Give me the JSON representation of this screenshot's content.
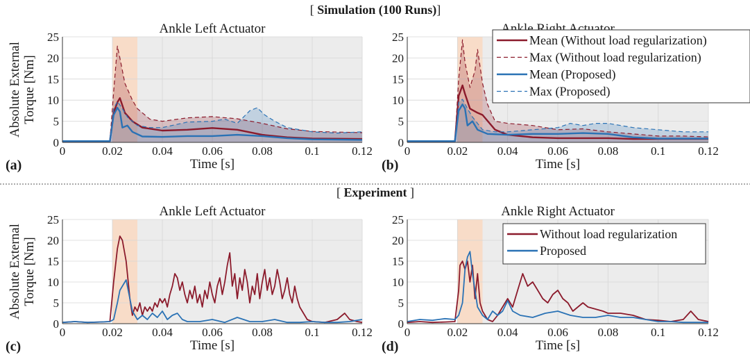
{
  "sections": {
    "simulation": {
      "prefix": "[ ",
      "bold": "Simulation (100 Runs)",
      "suffix": "]"
    },
    "experiment": {
      "prefix": "[ ",
      "bold": "Experiment",
      "suffix": " ]"
    }
  },
  "colors": {
    "without": "#8b1a2b",
    "proposed": "#2a72b5",
    "impact_region": "#f8dcc8",
    "post_region": "#ececec"
  },
  "chart_data": [
    {
      "type": "line",
      "panel": "(a)",
      "title": "Ankle Left Actuator",
      "xlabel": "Time [s]",
      "ylabel": "Absolute External Torque [Nm]",
      "xlim": [
        0,
        0.12
      ],
      "ylim": [
        0,
        25
      ],
      "xticks": [
        "0",
        "0.02",
        "0.04",
        "0.06",
        "0.08",
        "0.1",
        "0.12"
      ],
      "yticks": [
        "0",
        "5",
        "10",
        "15",
        "20",
        "25"
      ],
      "grid": true,
      "legend": null,
      "shaded_regions": [
        [
          0.02,
          0.03
        ],
        [
          0.03,
          0.12
        ]
      ],
      "series": [
        {
          "name": "Mean (Without load regularization)",
          "style": "mean",
          "color": "#8b1a2b",
          "x": [
            0,
            0.019,
            0.0205,
            0.022,
            0.023,
            0.025,
            0.028,
            0.032,
            0.04,
            0.05,
            0.06,
            0.07,
            0.08,
            0.09,
            0.1,
            0.12
          ],
          "y": [
            0.3,
            0.3,
            7,
            9.5,
            10.5,
            7,
            5,
            3.5,
            2.8,
            3,
            3.4,
            3,
            1.8,
            1.2,
            0.9,
            0.8
          ]
        },
        {
          "name": "Max (Without load regularization)",
          "style": "max",
          "color": "#8b1a2b",
          "x": [
            0,
            0.019,
            0.0205,
            0.022,
            0.023,
            0.025,
            0.028,
            0.03,
            0.032,
            0.035,
            0.04,
            0.05,
            0.06,
            0.07,
            0.08,
            0.09,
            0.1,
            0.12
          ],
          "y": [
            0.3,
            0.3,
            12,
            22.8,
            20,
            14,
            10,
            8,
            7,
            5.5,
            5,
            5.8,
            6.1,
            5.6,
            4.5,
            3.2,
            2.6,
            2.3
          ]
        },
        {
          "name": "Mean (Proposed)",
          "style": "mean",
          "color": "#2a72b5",
          "x": [
            0,
            0.019,
            0.0205,
            0.022,
            0.023,
            0.024,
            0.026,
            0.028,
            0.032,
            0.04,
            0.05,
            0.06,
            0.07,
            0.08,
            0.09,
            0.1,
            0.12
          ],
          "y": [
            0.3,
            0.3,
            6.5,
            8.2,
            7.3,
            3.5,
            4,
            2.5,
            1.4,
            1.3,
            1.5,
            1.5,
            1.8,
            1.5,
            1,
            0.7,
            0.6
          ]
        },
        {
          "name": "Max (Proposed)",
          "style": "max",
          "color": "#2a72b5",
          "x": [
            0,
            0.019,
            0.0205,
            0.022,
            0.024,
            0.026,
            0.03,
            0.035,
            0.04,
            0.05,
            0.06,
            0.065,
            0.07,
            0.075,
            0.078,
            0.081,
            0.085,
            0.09,
            0.1,
            0.11,
            0.12
          ],
          "y": [
            0.3,
            0.3,
            8,
            9.7,
            8,
            6,
            4,
            3.5,
            3.5,
            4.8,
            5,
            5.5,
            4.5,
            7.5,
            8.2,
            6.5,
            5,
            3.5,
            2.5,
            2.2,
            2.5
          ]
        }
      ]
    },
    {
      "type": "line",
      "panel": "(b)",
      "title": "Ankle Right Actuator",
      "xlabel": "Time [s]",
      "ylabel": "",
      "xlim": [
        0,
        0.12
      ],
      "ylim": [
        0,
        25
      ],
      "xticks": [
        "0",
        "0.02",
        "0.04",
        "0.06",
        "0.08",
        "0.1",
        "0.12"
      ],
      "yticks": [
        "0",
        "5",
        "10",
        "15",
        "20",
        "25"
      ],
      "grid": true,
      "legend": "top-right",
      "shaded_regions": [
        [
          0.02,
          0.03
        ],
        [
          0.03,
          0.12
        ]
      ],
      "series": [
        {
          "name": "Mean (Without load regularization)",
          "style": "mean",
          "color": "#8b1a2b",
          "x": [
            0,
            0.019,
            0.0205,
            0.022,
            0.023,
            0.025,
            0.028,
            0.03,
            0.035,
            0.04,
            0.05,
            0.06,
            0.07,
            0.08,
            0.09,
            0.1,
            0.12
          ],
          "y": [
            0.3,
            0.3,
            11,
            13.5,
            11.5,
            8,
            7,
            6.5,
            3,
            1.8,
            1.2,
            1,
            1,
            1,
            0.8,
            0.8,
            0.8
          ]
        },
        {
          "name": "Max (Without load regularization)",
          "style": "max",
          "color": "#8b1a2b",
          "x": [
            0,
            0.019,
            0.0205,
            0.022,
            0.023,
            0.025,
            0.027,
            0.028,
            0.03,
            0.032,
            0.035,
            0.04,
            0.05,
            0.06,
            0.07,
            0.08,
            0.09,
            0.1,
            0.11,
            0.12
          ],
          "y": [
            0.3,
            0.3,
            15,
            24.3,
            19,
            13,
            17,
            22,
            14,
            9,
            5,
            4.5,
            4,
            3,
            3.2,
            2.5,
            2,
            1.5,
            1.5,
            1.3
          ]
        },
        {
          "name": "Mean (Proposed)",
          "style": "mean",
          "color": "#2a72b5",
          "x": [
            0,
            0.019,
            0.0205,
            0.022,
            0.023,
            0.024,
            0.026,
            0.028,
            0.032,
            0.04,
            0.05,
            0.06,
            0.07,
            0.08,
            0.09,
            0.1,
            0.12
          ],
          "y": [
            0.3,
            0.3,
            7.5,
            9,
            8,
            4,
            5,
            3,
            2,
            1.8,
            2,
            2,
            2.2,
            2,
            1.2,
            0.9,
            0.9
          ]
        },
        {
          "name": "Max (Proposed)",
          "style": "max",
          "color": "#2a72b5",
          "x": [
            0,
            0.019,
            0.0205,
            0.022,
            0.024,
            0.026,
            0.03,
            0.035,
            0.04,
            0.05,
            0.06,
            0.065,
            0.07,
            0.075,
            0.08,
            0.09,
            0.1,
            0.11,
            0.12
          ],
          "y": [
            0.3,
            0.3,
            9.5,
            10.2,
            8,
            6,
            3,
            2.5,
            2.5,
            3,
            3.5,
            4.5,
            4,
            4.5,
            4.5,
            3.5,
            3,
            2.5,
            2.5
          ]
        }
      ]
    },
    {
      "type": "line",
      "panel": "(c)",
      "title": "Ankle Left Actuator",
      "xlabel": "Time [s]",
      "ylabel": "Absolute External Torque [Nm]",
      "xlim": [
        0,
        0.12
      ],
      "ylim": [
        0,
        25
      ],
      "xticks": [
        "0",
        "0.02",
        "0.04",
        "0.06",
        "0.08",
        "0.1",
        "0.12"
      ],
      "yticks": [
        "0",
        "5",
        "10",
        "15",
        "20",
        "25"
      ],
      "grid": true,
      "legend": null,
      "shaded_regions": [
        [
          0.02,
          0.03
        ],
        [
          0.03,
          0.12
        ]
      ],
      "series": [
        {
          "name": "Without load regularization",
          "style": "raw",
          "color": "#8b1a2b",
          "x": [
            0,
            0.005,
            0.01,
            0.015,
            0.019,
            0.0205,
            0.022,
            0.023,
            0.024,
            0.0255,
            0.027,
            0.028,
            0.029,
            0.03,
            0.031,
            0.032,
            0.033,
            0.034,
            0.035,
            0.036,
            0.037,
            0.038,
            0.039,
            0.04,
            0.041,
            0.042,
            0.043,
            0.044,
            0.045,
            0.046,
            0.047,
            0.048,
            0.049,
            0.05,
            0.051,
            0.052,
            0.053,
            0.054,
            0.055,
            0.056,
            0.057,
            0.058,
            0.059,
            0.06,
            0.061,
            0.062,
            0.063,
            0.064,
            0.065,
            0.066,
            0.067,
            0.068,
            0.069,
            0.07,
            0.071,
            0.072,
            0.073,
            0.074,
            0.075,
            0.076,
            0.077,
            0.078,
            0.079,
            0.08,
            0.081,
            0.082,
            0.083,
            0.084,
            0.085,
            0.086,
            0.087,
            0.088,
            0.089,
            0.09,
            0.091,
            0.092,
            0.093,
            0.094,
            0.095,
            0.096,
            0.097,
            0.098,
            0.1,
            0.105,
            0.11,
            0.113,
            0.115,
            0.118,
            0.12
          ],
          "y": [
            0.3,
            0.5,
            0.3,
            0.4,
            0.5,
            10,
            18,
            21,
            20,
            15,
            6,
            2,
            4,
            3,
            5,
            2,
            4,
            3,
            4,
            3,
            5,
            4,
            6,
            5,
            6,
            4,
            7,
            9,
            12,
            11,
            8,
            10,
            7,
            5,
            8,
            6,
            9,
            5,
            7,
            4,
            8,
            6,
            10,
            7,
            5,
            9,
            11,
            7,
            10,
            14,
            17,
            9,
            12,
            6,
            11,
            8,
            13,
            10,
            5,
            9,
            7,
            12,
            6,
            10,
            13,
            8,
            11,
            7,
            9,
            13,
            10,
            6,
            8,
            11,
            7,
            5,
            9,
            6,
            4,
            3,
            2,
            1,
            0.5,
            0.3,
            1,
            2.5,
            1,
            0.5,
            0.3
          ]
        },
        {
          "name": "Proposed",
          "style": "raw",
          "color": "#2a72b5",
          "x": [
            0,
            0.005,
            0.01,
            0.015,
            0.019,
            0.0205,
            0.022,
            0.023,
            0.024,
            0.0255,
            0.027,
            0.028,
            0.03,
            0.032,
            0.034,
            0.036,
            0.038,
            0.04,
            0.042,
            0.044,
            0.046,
            0.048,
            0.05,
            0.055,
            0.06,
            0.065,
            0.07,
            0.075,
            0.08,
            0.085,
            0.09,
            0.095,
            0.1,
            0.105,
            0.11,
            0.115,
            0.12
          ],
          "y": [
            0.3,
            0.5,
            0.3,
            0.4,
            0.5,
            1,
            5,
            8,
            9,
            10.5,
            6,
            3,
            1,
            2,
            1,
            2.5,
            1.5,
            3,
            1,
            2,
            2.5,
            1,
            0.5,
            0.5,
            1,
            0.3,
            1.5,
            0.5,
            0.5,
            1,
            0.3,
            0.3,
            0.5,
            0.3,
            0.3,
            0.5,
            1
          ]
        }
      ]
    },
    {
      "type": "line",
      "panel": "(d)",
      "title": "Ankle Right Actuator",
      "xlabel": "Time [s]",
      "ylabel": "",
      "xlim": [
        0,
        0.12
      ],
      "ylim": [
        0,
        25
      ],
      "xticks": [
        "0",
        "0.02",
        "0.04",
        "0.06",
        "0.08",
        "0.1",
        "0.12"
      ],
      "yticks": [
        "0",
        "5",
        "10",
        "15",
        "20",
        "25"
      ],
      "grid": true,
      "legend": "top-right",
      "shaded_regions": [
        [
          0.02,
          0.03
        ],
        [
          0.03,
          0.12
        ]
      ],
      "series": [
        {
          "name": "Without load regularization",
          "style": "raw",
          "color": "#8b1a2b",
          "x": [
            0,
            0.005,
            0.01,
            0.015,
            0.019,
            0.0205,
            0.021,
            0.022,
            0.023,
            0.024,
            0.025,
            0.026,
            0.027,
            0.028,
            0.029,
            0.03,
            0.032,
            0.034,
            0.036,
            0.038,
            0.04,
            0.042,
            0.044,
            0.046,
            0.048,
            0.05,
            0.052,
            0.054,
            0.056,
            0.058,
            0.06,
            0.062,
            0.064,
            0.066,
            0.068,
            0.07,
            0.072,
            0.075,
            0.078,
            0.08,
            0.085,
            0.09,
            0.095,
            0.1,
            0.105,
            0.11,
            0.113,
            0.116,
            0.12
          ],
          "y": [
            0.3,
            0.5,
            0.3,
            0.4,
            0.5,
            8,
            14,
            15,
            13,
            15,
            10,
            14,
            6,
            12,
            5,
            3,
            1,
            0.5,
            2,
            4,
            6,
            4,
            8,
            12,
            9,
            10,
            8,
            6,
            5,
            7,
            8,
            6,
            5,
            3,
            4,
            5,
            4,
            3.5,
            3,
            2.5,
            2.5,
            2,
            1,
            0.8,
            0.5,
            1,
            3,
            1,
            0.5
          ]
        },
        {
          "name": "Proposed",
          "style": "raw",
          "color": "#2a72b5",
          "x": [
            0,
            0.005,
            0.01,
            0.015,
            0.019,
            0.0205,
            0.022,
            0.023,
            0.024,
            0.025,
            0.026,
            0.027,
            0.028,
            0.03,
            0.032,
            0.034,
            0.036,
            0.038,
            0.04,
            0.042,
            0.045,
            0.05,
            0.055,
            0.06,
            0.065,
            0.07,
            0.075,
            0.08,
            0.085,
            0.09,
            0.095,
            0.1,
            0.105,
            0.11,
            0.115,
            0.12
          ],
          "y": [
            0.5,
            1,
            0.8,
            1.2,
            1,
            2,
            5,
            13,
            16,
            17.3,
            12,
            8,
            4,
            2,
            1,
            3,
            2,
            3,
            5.5,
            3,
            2,
            1.5,
            2.5,
            3,
            2,
            1.5,
            1.5,
            2,
            1.5,
            1.5,
            1,
            0.5,
            0.5,
            0.3,
            0.3,
            0.3
          ]
        }
      ]
    }
  ]
}
